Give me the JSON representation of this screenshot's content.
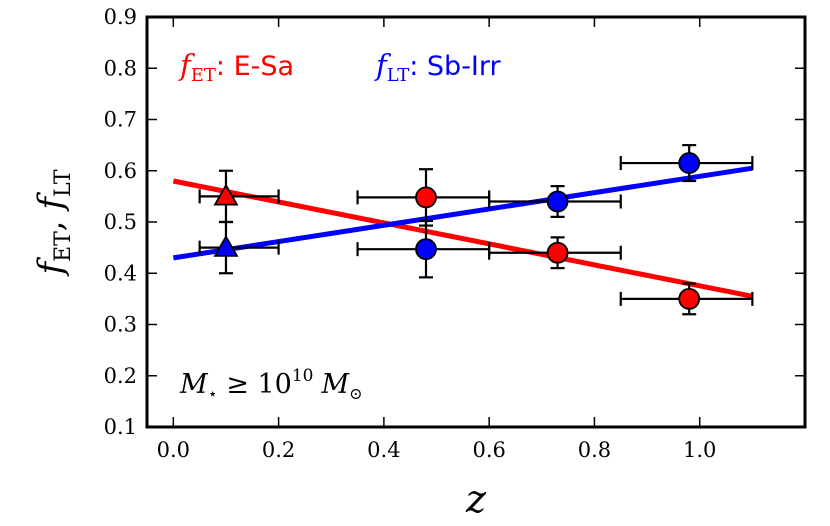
{
  "chart_data": {
    "type": "scatter",
    "title": "",
    "xlabel": "z",
    "ylabel": "f_ET, f_LT",
    "xlim": [
      -0.05,
      1.2
    ],
    "ylim": [
      0.1,
      0.9
    ],
    "xticks": [
      0.0,
      0.2,
      0.4,
      0.6,
      0.8,
      1.0
    ],
    "xtick_labels": [
      "0.0",
      "0.2",
      "0.4",
      "0.6",
      "0.8",
      "1.0"
    ],
    "yticks": [
      0.1,
      0.2,
      0.3,
      0.4,
      0.5,
      0.6,
      0.7,
      0.8,
      0.9
    ],
    "ytick_labels": [
      "0.1",
      "0.2",
      "0.3",
      "0.4",
      "0.5",
      "0.6",
      "0.7",
      "0.8",
      "0.9"
    ],
    "legend": {
      "placement": "top-left",
      "entries": [
        {
          "symbol": "f",
          "sub": "ET",
          "label": ": E-Sa",
          "color": "#ff0000"
        },
        {
          "symbol": "f",
          "sub": "LT",
          "label": ": Sb-Irr",
          "color": "#0000ff"
        }
      ]
    },
    "annotation": {
      "m": "M",
      "star": "⋆",
      "geq": " ≥ 10",
      "exp": "10",
      "msun": "M",
      "odot": "⊙"
    },
    "series": [
      {
        "name": "f_ET: E-Sa",
        "color": "#ff0000",
        "fit_line": {
          "x": [
            0.0,
            1.1
          ],
          "y": [
            0.58,
            0.355
          ]
        },
        "points": [
          {
            "x": 0.1,
            "y": 0.55,
            "xerr": [
              0.05,
              0.1
            ],
            "yerr": 0.05,
            "marker": "triangle"
          },
          {
            "x": 0.48,
            "y": 0.548,
            "xerr": [
              0.13,
              0.12
            ],
            "yerr": 0.055,
            "marker": "circle"
          },
          {
            "x": 0.73,
            "y": 0.44,
            "xerr": [
              0.13,
              0.12
            ],
            "yerr": 0.03,
            "marker": "circle"
          },
          {
            "x": 0.98,
            "y": 0.35,
            "xerr": [
              0.13,
              0.12
            ],
            "yerr": 0.03,
            "marker": "circle"
          }
        ]
      },
      {
        "name": "f_LT: Sb-Irr",
        "color": "#0000ff",
        "fit_line": {
          "x": [
            0.0,
            1.1
          ],
          "y": [
            0.43,
            0.605
          ]
        },
        "points": [
          {
            "x": 0.1,
            "y": 0.45,
            "xerr": [
              0.05,
              0.1
            ],
            "yerr": 0.05,
            "marker": "triangle"
          },
          {
            "x": 0.48,
            "y": 0.447,
            "xerr": [
              0.13,
              0.12
            ],
            "yerr": 0.055,
            "marker": "circle"
          },
          {
            "x": 0.73,
            "y": 0.54,
            "xerr": [
              0.13,
              0.12
            ],
            "yerr": 0.03,
            "marker": "circle"
          },
          {
            "x": 0.98,
            "y": 0.615,
            "xerr": [
              0.13,
              0.12
            ],
            "yerr": 0.035,
            "marker": "circle"
          }
        ]
      }
    ]
  }
}
